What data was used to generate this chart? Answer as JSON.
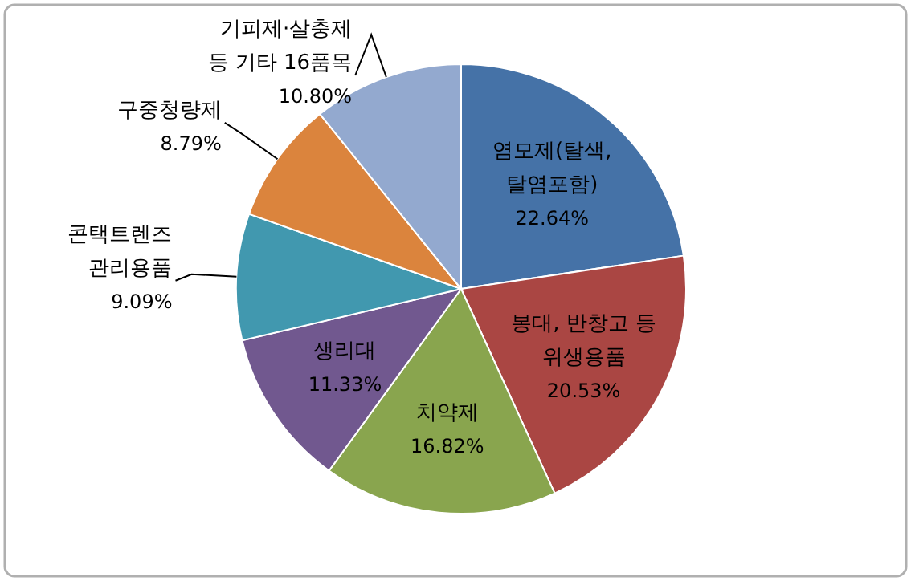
{
  "chart_data": {
    "type": "pie",
    "categories": [
      "염모제(탈색,\n탈염포함)",
      "봉대, 반창고 등\n위생용품",
      "치약제",
      "생리대",
      "콘택트렌즈\n관리용품",
      "구중청량제",
      "기피제·살충제\n등 기타 16품목"
    ],
    "values": [
      22.64,
      20.53,
      16.82,
      11.33,
      9.09,
      8.79,
      10.8
    ],
    "value_labels": [
      "22.64%",
      "20.53%",
      "16.82%",
      "11.33%",
      "9.09%",
      "8.79%",
      "10.80%"
    ],
    "colors": [
      "#4572a7",
      "#aa4643",
      "#89a54e",
      "#71588f",
      "#4198af",
      "#db843d",
      "#93a9cf"
    ]
  }
}
